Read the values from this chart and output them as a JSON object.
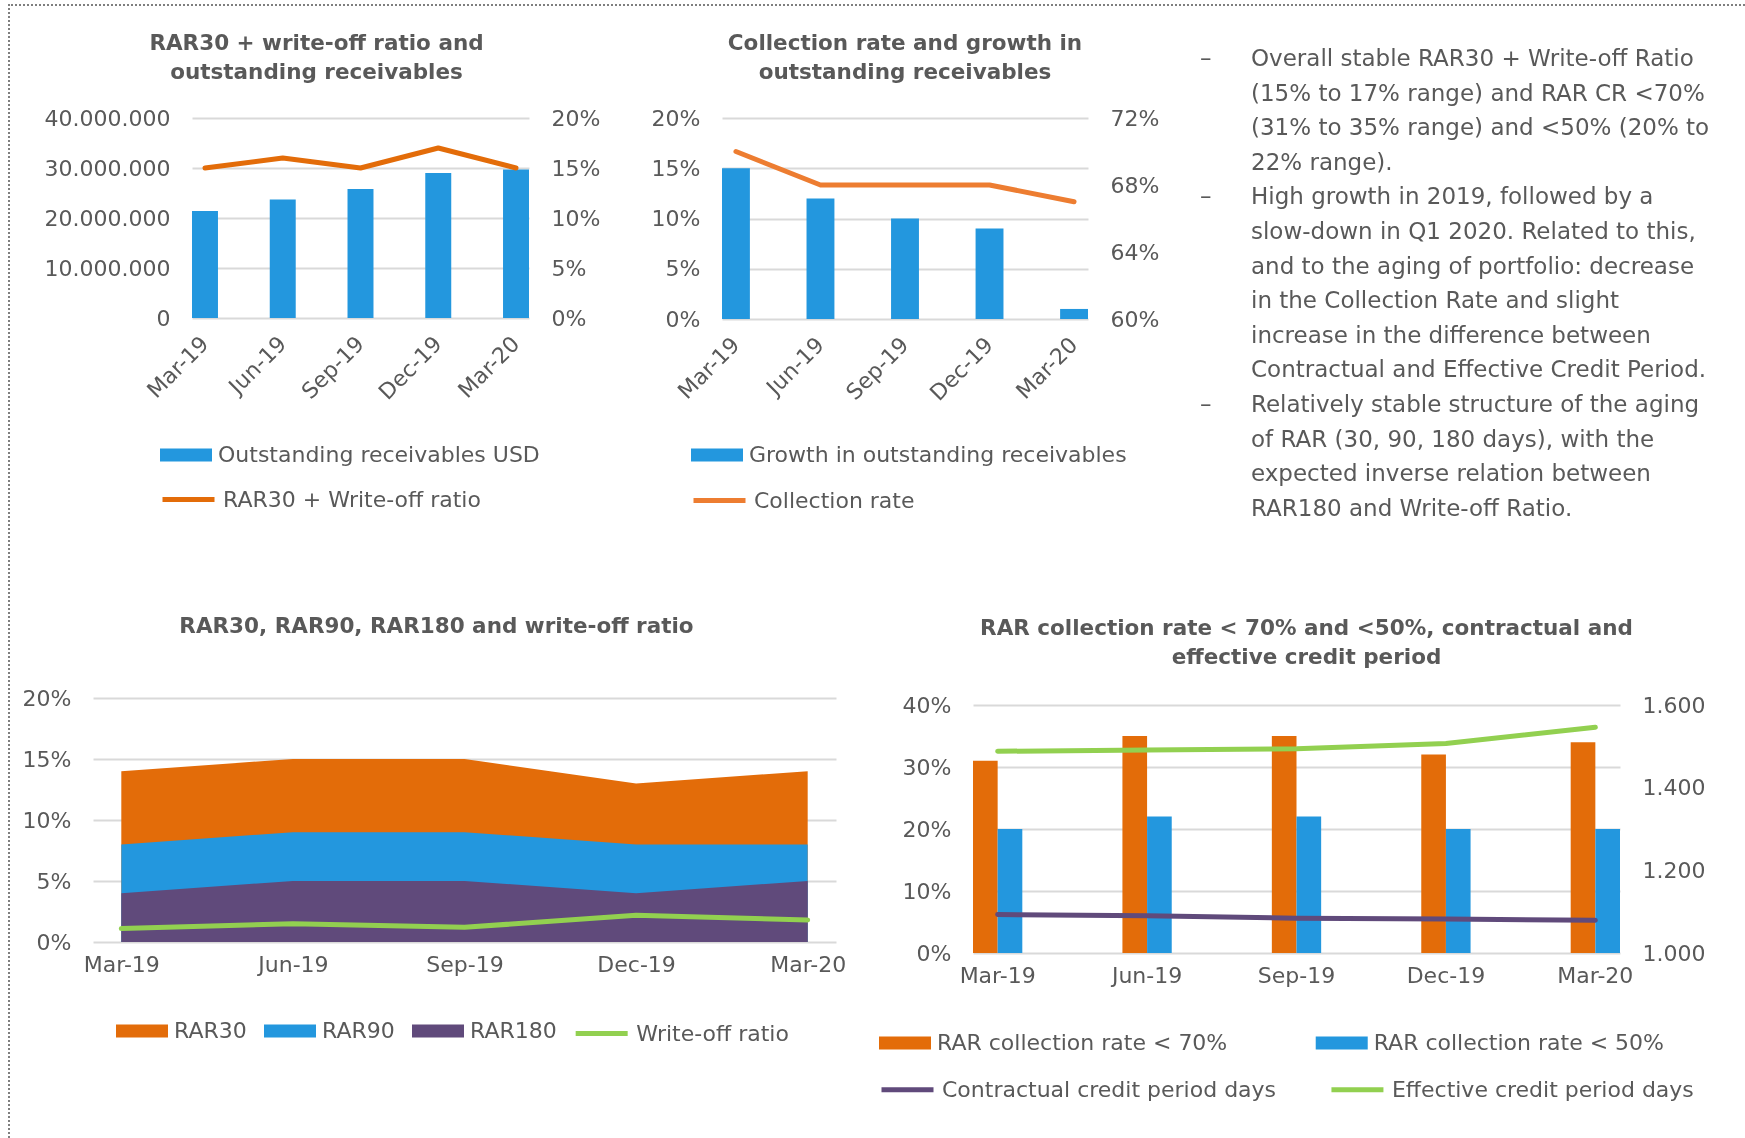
{
  "chart_data": [
    {
      "type": "bar",
      "title": "RAR30 + write-off ratio and\noutstanding receivables",
      "categories": [
        "Mar-19",
        "Jun-19",
        "Sep-19",
        "Dec-19",
        "Mar-20"
      ],
      "series": [
        {
          "name": "Outstanding receivables USD",
          "color": "#2397de",
          "values": [
            21400000,
            23700000,
            25800000,
            29000000,
            29700000
          ]
        },
        {
          "name": "RAR30 + Write-off ratio",
          "type": "line",
          "axis": "y2",
          "color": "#e36c09",
          "values": [
            15,
            16,
            15,
            17,
            15
          ]
        }
      ],
      "ylim": [
        0,
        40000000
      ],
      "yticks": [
        0,
        {
          "value": 10000000,
          "label": "10.000.000"
        },
        {
          "value": 20000000,
          "label": "20.000.000"
        },
        {
          "value": 30000000,
          "label": "30.000.000"
        },
        {
          "value": 40000000,
          "label": "40.000.000"
        }
      ],
      "y2lim": [
        0,
        20
      ],
      "y2ticks": [
        {
          "value": 0,
          "label": "0%"
        },
        {
          "value": 5,
          "label": "5%"
        },
        {
          "value": 10,
          "label": "10%"
        },
        {
          "value": 15,
          "label": "15%"
        },
        {
          "value": 20,
          "label": "20%"
        }
      ],
      "grid": "y",
      "legend": "bottom"
    },
    {
      "type": "bar",
      "title": "Collection rate and growth in\noutstanding receivables",
      "categories": [
        "Mar-19",
        "Jun-19",
        "Sep-19",
        "Dec-19",
        "Mar-20"
      ],
      "series": [
        {
          "name": "Growth in outstanding receivables",
          "color": "#2397de",
          "values": [
            15,
            12,
            10,
            9,
            1
          ]
        },
        {
          "name": "Collection rate",
          "type": "line",
          "axis": "y2",
          "color": "#ed7d31",
          "values": [
            70,
            68,
            68,
            68,
            67
          ]
        }
      ],
      "ylim": [
        0,
        20
      ],
      "yticks": [
        {
          "value": 0,
          "label": "0%"
        },
        {
          "value": 5,
          "label": "5%"
        },
        {
          "value": 10,
          "label": "10%"
        },
        {
          "value": 15,
          "label": "15%"
        },
        {
          "value": 20,
          "label": "20%"
        }
      ],
      "y2lim": [
        60,
        72
      ],
      "y2ticks": [
        {
          "value": 60,
          "label": "60%"
        },
        {
          "value": 64,
          "label": "64%"
        },
        {
          "value": 68,
          "label": "68%"
        },
        {
          "value": 72,
          "label": "72%"
        }
      ],
      "grid": "y",
      "legend": "bottom"
    },
    {
      "type": "other",
      "annotations": [
        "– Overall stable RAR30 + Write-off Ratio\n(15% to 17% range) and RAR CR <70%\n(31% to 35% range) and <50% (20% to\n22% range).",
        "– High growth in 2019, followed by a\nslow-down in Q1 2020. Related to this,\nand to the aging of portfolio: decrease\nin the Collection Rate and slight\nincrease in the difference between\nContractual and Effective Credit Period.",
        "– Relatively stable structure of the aging\nof RAR (30, 90, 180 days), with the\nexpected inverse relation between\nRAR180 and Write-off Ratio."
      ]
    },
    {
      "type": "area",
      "title": "RAR30, RAR90, RAR180 and write-off ratio",
      "categories": [
        "Mar-19",
        "Jun-19",
        "Sep-19",
        "Dec-19",
        "Mar-20"
      ],
      "series": [
        {
          "name": "RAR30",
          "color": "#e36c09",
          "values": [
            14,
            15,
            15,
            13,
            14
          ]
        },
        {
          "name": "RAR90",
          "color": "#2397de",
          "values": [
            8,
            9,
            9,
            8,
            8
          ]
        },
        {
          "name": "RAR180",
          "color": "#604a7b",
          "values": [
            4,
            5,
            5,
            4,
            5
          ]
        },
        {
          "name": "Write-off ratio",
          "type": "line",
          "color": "#92d050",
          "values": [
            1.1,
            1.5,
            1.2,
            2.2,
            1.8
          ]
        }
      ],
      "ylim": [
        0,
        20
      ],
      "yticks": [
        {
          "value": 0,
          "label": "0%"
        },
        {
          "value": 5,
          "label": "5%"
        },
        {
          "value": 10,
          "label": "10%"
        },
        {
          "value": 15,
          "label": "15%"
        },
        {
          "value": 20,
          "label": "20%"
        }
      ],
      "grid": "y",
      "legend": "bottom"
    },
    {
      "type": "bar",
      "title": "RAR collection rate < 70% and <50%, contractual and\neffective credit period",
      "categories": [
        "Mar-19",
        "Jun-19",
        "Sep-19",
        "Dec-19",
        "Mar-20"
      ],
      "series": [
        {
          "name": "RAR collection rate < 70%",
          "color": "#e36c09",
          "values": [
            31,
            35,
            35,
            32,
            34
          ]
        },
        {
          "name": "RAR collection rate < 50%",
          "color": "#2397de",
          "values": [
            20,
            22,
            22,
            20,
            20
          ]
        },
        {
          "name": "Contractual credit period days",
          "type": "line",
          "axis": "y2",
          "color": "#604a7b",
          "values": [
            1093,
            1090,
            1084,
            1082,
            1079
          ]
        },
        {
          "name": "Effective credit period days",
          "type": "line",
          "axis": "y2",
          "color": "#92d050",
          "values": [
            1488,
            1491,
            1494,
            1507,
            1546
          ]
        }
      ],
      "ylim": [
        0,
        40
      ],
      "yticks": [
        {
          "value": 0,
          "label": "0%"
        },
        {
          "value": 10,
          "label": "10%"
        },
        {
          "value": 20,
          "label": "20%"
        },
        {
          "value": 30,
          "label": "30%"
        },
        {
          "value": 40,
          "label": "40%"
        }
      ],
      "y2lim": [
        1000,
        1600
      ],
      "y2ticks": [
        {
          "value": 1000,
          "label": "1.000"
        },
        {
          "value": 1200,
          "label": "1.200"
        },
        {
          "value": 1400,
          "label": "1.400"
        },
        {
          "value": 1600,
          "label": "1.600"
        }
      ],
      "grid": "y",
      "legend": "bottom"
    }
  ]
}
